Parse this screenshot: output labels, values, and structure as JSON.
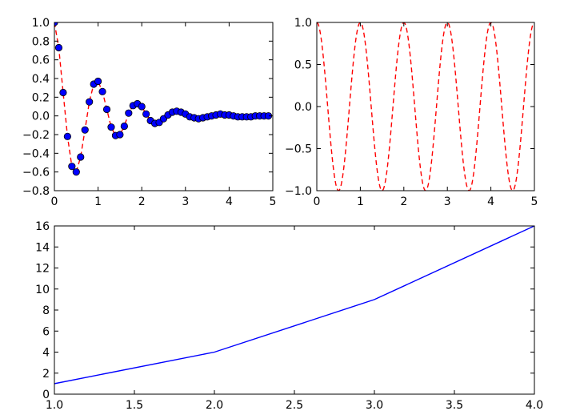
{
  "chart_data": [
    {
      "type": "scatter",
      "title": "",
      "xlabel": "",
      "ylabel": "",
      "xlim": [
        0,
        5
      ],
      "ylim": [
        -0.8,
        1.0
      ],
      "xticks": [
        0,
        1,
        2,
        3,
        4,
        5
      ],
      "yticks": [
        -0.8,
        -0.6,
        -0.4,
        -0.2,
        0.0,
        0.2,
        0.4,
        0.6,
        0.8,
        1.0
      ],
      "grid": false,
      "colors": {
        "line": "#ff0000",
        "marker_face": "#0000ff",
        "marker_edge": "#000000"
      },
      "series": [
        {
          "style": "red dashed line",
          "x": [
            0.0,
            0.1,
            0.2,
            0.3,
            0.4,
            0.5,
            0.6,
            0.7,
            0.8,
            0.9,
            1.0,
            1.1,
            1.2,
            1.3,
            1.4,
            1.5,
            1.6,
            1.7,
            1.8,
            1.9,
            2.0,
            2.1,
            2.2,
            2.3,
            2.4,
            2.5,
            2.6,
            2.7,
            2.8,
            2.9,
            3.0,
            3.1,
            3.2,
            3.3,
            3.4,
            3.5,
            3.6,
            3.7,
            3.8,
            3.9,
            4.0,
            4.1,
            4.2,
            4.3,
            4.4,
            4.5,
            4.6,
            4.7,
            4.8,
            4.9
          ],
          "y": [
            1.0,
            0.73,
            0.25,
            -0.22,
            -0.54,
            -0.6,
            -0.44,
            -0.15,
            0.15,
            0.34,
            0.37,
            0.26,
            0.07,
            -0.12,
            -0.21,
            -0.2,
            -0.11,
            0.03,
            0.11,
            0.13,
            0.1,
            0.02,
            -0.05,
            -0.08,
            -0.07,
            -0.03,
            0.01,
            0.04,
            0.05,
            0.04,
            0.02,
            -0.01,
            -0.02,
            -0.03,
            -0.02,
            -0.01,
            0.0,
            0.01,
            0.02,
            0.01,
            0.01,
            0.0,
            -0.01,
            -0.01,
            -0.01,
            -0.01,
            0.0,
            0.0,
            0.0,
            0.0
          ]
        },
        {
          "style": "blue circle markers",
          "x": [
            0.0,
            0.1,
            0.2,
            0.3,
            0.4,
            0.5,
            0.6,
            0.7,
            0.8,
            0.9,
            1.0,
            1.1,
            1.2,
            1.3,
            1.4,
            1.5,
            1.6,
            1.7,
            1.8,
            1.9,
            2.0,
            2.1,
            2.2,
            2.3,
            2.4,
            2.5,
            2.6,
            2.7,
            2.8,
            2.9,
            3.0,
            3.1,
            3.2,
            3.3,
            3.4,
            3.5,
            3.6,
            3.7,
            3.8,
            3.9,
            4.0,
            4.1,
            4.2,
            4.3,
            4.4,
            4.5,
            4.6,
            4.7,
            4.8,
            4.9
          ],
          "y": [
            1.0,
            0.73,
            0.25,
            -0.22,
            -0.54,
            -0.6,
            -0.44,
            -0.15,
            0.15,
            0.34,
            0.37,
            0.26,
            0.07,
            -0.12,
            -0.21,
            -0.2,
            -0.11,
            0.03,
            0.11,
            0.13,
            0.1,
            0.02,
            -0.05,
            -0.08,
            -0.07,
            -0.03,
            0.01,
            0.04,
            0.05,
            0.04,
            0.02,
            -0.01,
            -0.02,
            -0.03,
            -0.02,
            -0.01,
            0.0,
            0.01,
            0.02,
            0.01,
            0.01,
            0.0,
            -0.01,
            -0.01,
            -0.01,
            -0.01,
            0.0,
            0.0,
            0.0,
            0.0
          ]
        }
      ]
    },
    {
      "type": "line",
      "title": "",
      "xlabel": "",
      "ylabel": "",
      "xlim": [
        0,
        5
      ],
      "ylim": [
        -1.0,
        1.0
      ],
      "xticks": [
        0,
        1,
        2,
        3,
        4,
        5
      ],
      "yticks": [
        -1.0,
        -0.5,
        0.0,
        0.5,
        1.0
      ],
      "grid": false,
      "colors": {
        "line": "#ff0000"
      },
      "series": [
        {
          "style": "red dashed line",
          "x": [
            0.0,
            0.25,
            0.5,
            0.75,
            1.0,
            1.25,
            1.5,
            1.75,
            2.0,
            2.25,
            2.5,
            2.75,
            3.0,
            3.25,
            3.5,
            3.75,
            4.0,
            4.25,
            4.5,
            4.75,
            5.0
          ],
          "y": [
            1.0,
            0.0,
            -1.0,
            0.0,
            1.0,
            0.0,
            -1.0,
            0.0,
            1.0,
            0.0,
            -1.0,
            0.0,
            1.0,
            0.0,
            -1.0,
            0.0,
            1.0,
            0.0,
            -1.0,
            0.0,
            1.0
          ]
        }
      ]
    },
    {
      "type": "line",
      "title": "",
      "xlabel": "",
      "ylabel": "",
      "xlim": [
        1.0,
        4.0
      ],
      "ylim": [
        0,
        16
      ],
      "xticks": [
        1.0,
        1.5,
        2.0,
        2.5,
        3.0,
        3.5,
        4.0
      ],
      "yticks": [
        0,
        2,
        4,
        6,
        8,
        10,
        12,
        14,
        16
      ],
      "grid": false,
      "colors": {
        "line": "#0000ff"
      },
      "series": [
        {
          "style": "blue solid line",
          "x": [
            1,
            2,
            3,
            4
          ],
          "y": [
            1,
            4,
            9,
            16
          ]
        }
      ]
    }
  ]
}
